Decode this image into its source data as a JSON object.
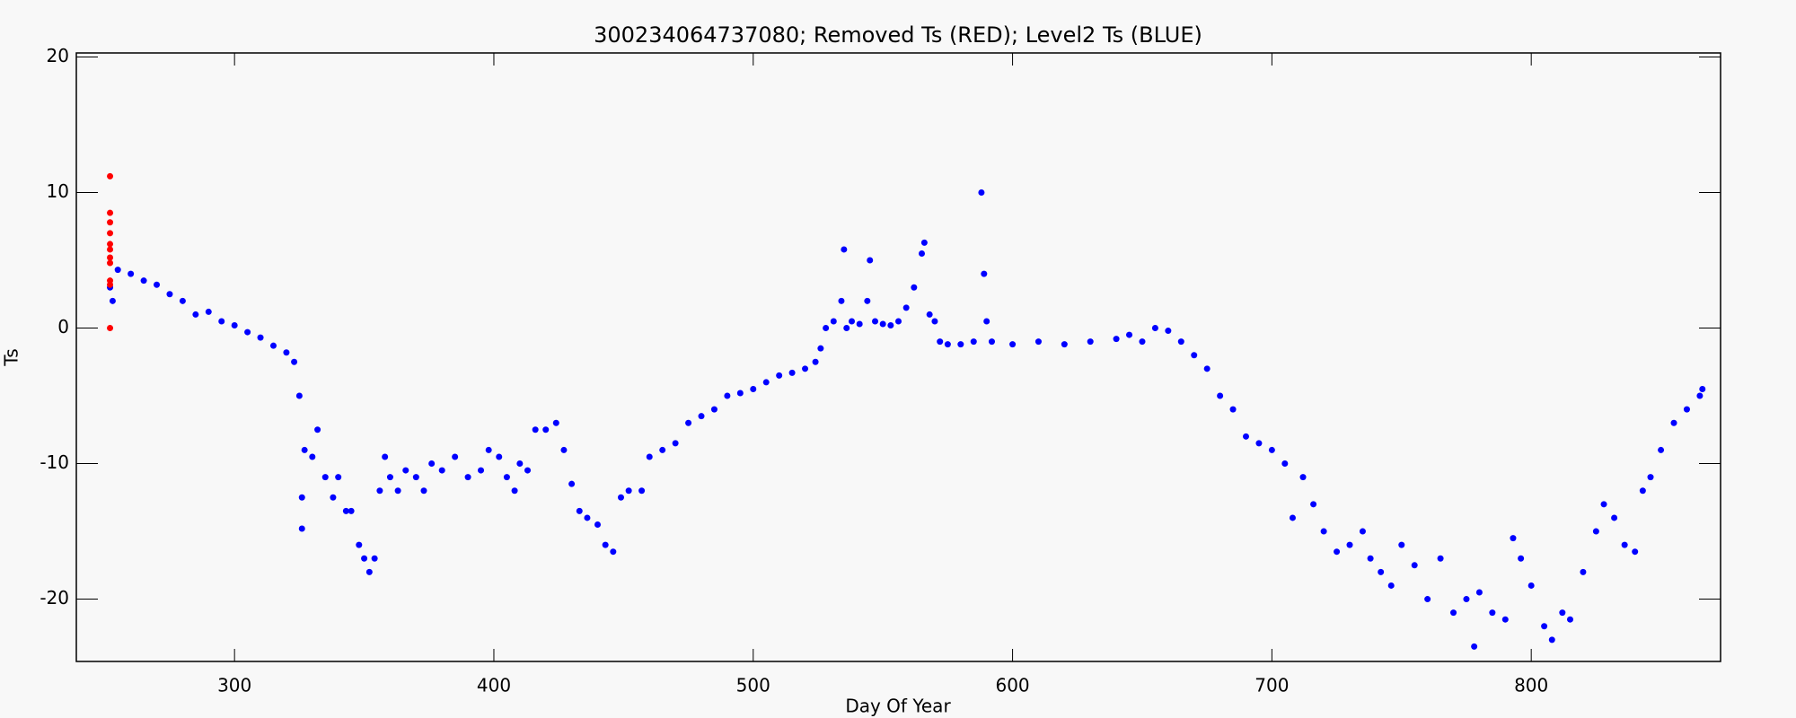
{
  "chart_data": {
    "type": "scatter",
    "title": "300234064737080; Removed Ts (RED); Level2 Ts (BLUE)",
    "xlabel": "Day Of Year",
    "ylabel": "Ts",
    "xlim": [
      239,
      873
    ],
    "ylim": [
      -24.6,
      20.3
    ],
    "xticks": [
      300,
      400,
      500,
      600,
      700,
      800
    ],
    "yticks": [
      -20,
      -10,
      0,
      10,
      20
    ],
    "series": [
      {
        "color": "#0000ff",
        "x": [
          252,
          253,
          255,
          260,
          265,
          270,
          275,
          280,
          285,
          290,
          295,
          300,
          305,
          310,
          315,
          320,
          323,
          325,
          326,
          326,
          327,
          330,
          332,
          335,
          338,
          340,
          343,
          345,
          348,
          350,
          352,
          354,
          356,
          358,
          360,
          363,
          366,
          370,
          373,
          376,
          380,
          385,
          390,
          395,
          398,
          402,
          405,
          408,
          410,
          413,
          416,
          420,
          424,
          427,
          430,
          433,
          436,
          440,
          443,
          446,
          449,
          452,
          457,
          460,
          465,
          470,
          475,
          480,
          485,
          490,
          495,
          500,
          505,
          510,
          515,
          520,
          524,
          526,
          528,
          531,
          534,
          535,
          536,
          538,
          541,
          544,
          545,
          547,
          550,
          553,
          556,
          559,
          562,
          565,
          566,
          568,
          570,
          572,
          575,
          580,
          585,
          588,
          589,
          590,
          592,
          600,
          610,
          620,
          630,
          640,
          645,
          650,
          655,
          660,
          665,
          670,
          675,
          680,
          685,
          690,
          695,
          700,
          705,
          708,
          712,
          716,
          720,
          725,
          730,
          735,
          738,
          742,
          746,
          750,
          755,
          760,
          765,
          770,
          775,
          778,
          780,
          785,
          790,
          793,
          796,
          800,
          805,
          808,
          812,
          815,
          820,
          825,
          828,
          832,
          836,
          840,
          843,
          846,
          850,
          855,
          860,
          865,
          866
        ],
        "values": [
          3,
          2,
          4.3,
          4,
          3.5,
          3.2,
          2.5,
          2,
          1,
          1.2,
          0.5,
          0.2,
          -0.3,
          -0.7,
          -1.3,
          -1.8,
          -2.5,
          -5,
          -12.5,
          -14.8,
          -9,
          -9.5,
          -7.5,
          -11,
          -12.5,
          -11,
          -13.5,
          -13.5,
          -16,
          -17,
          -18,
          -17,
          -12,
          -9.5,
          -11,
          -12,
          -10.5,
          -11,
          -12,
          -10,
          -10.5,
          -9.5,
          -11,
          -10.5,
          -9,
          -9.5,
          -11,
          -12,
          -10,
          -10.5,
          -7.5,
          -7.5,
          -7,
          -9,
          -11.5,
          -13.5,
          -14,
          -14.5,
          -16,
          -16.5,
          -12.5,
          -12,
          -12,
          -9.5,
          -9,
          -8.5,
          -7,
          -6.5,
          -6,
          -5,
          -4.8,
          -4.5,
          -4,
          -3.5,
          -3.3,
          -3,
          -2.5,
          -1.5,
          0,
          0.5,
          2,
          5.8,
          0,
          0.5,
          0.3,
          2,
          5,
          0.5,
          0.3,
          0.2,
          0.5,
          1.5,
          3,
          5.5,
          6.3,
          1,
          0.5,
          -1,
          -1.2,
          -1.2,
          -1,
          10,
          4,
          0.5,
          -1,
          -1.2,
          -1,
          -1.2,
          -1,
          -0.8,
          -0.5,
          -1,
          0,
          -0.2,
          -1,
          -2,
          -3,
          -5,
          -6,
          -8,
          -8.5,
          -9,
          -10,
          -14,
          -11,
          -13,
          -15,
          -16.5,
          -16,
          -15,
          -17,
          -18,
          -19,
          -16,
          -17.5,
          -20,
          -17,
          -21,
          -20,
          -23.5,
          -19.5,
          -21,
          -21.5,
          -15.5,
          -17,
          -19,
          -22,
          -23,
          -21,
          -21.5,
          -18,
          -15,
          -13,
          -14,
          -16,
          -16.5,
          -12,
          -11,
          -9,
          -7,
          -6,
          -5,
          -4.5
        ]
      },
      {
        "color": "#ff0000",
        "x": [
          252,
          252,
          252,
          252,
          252,
          252,
          252,
          252,
          252,
          252,
          252
        ],
        "values": [
          11.2,
          8.5,
          7.8,
          7,
          6.2,
          5.8,
          5.2,
          4.8,
          3.5,
          3.2,
          0
        ]
      }
    ]
  }
}
